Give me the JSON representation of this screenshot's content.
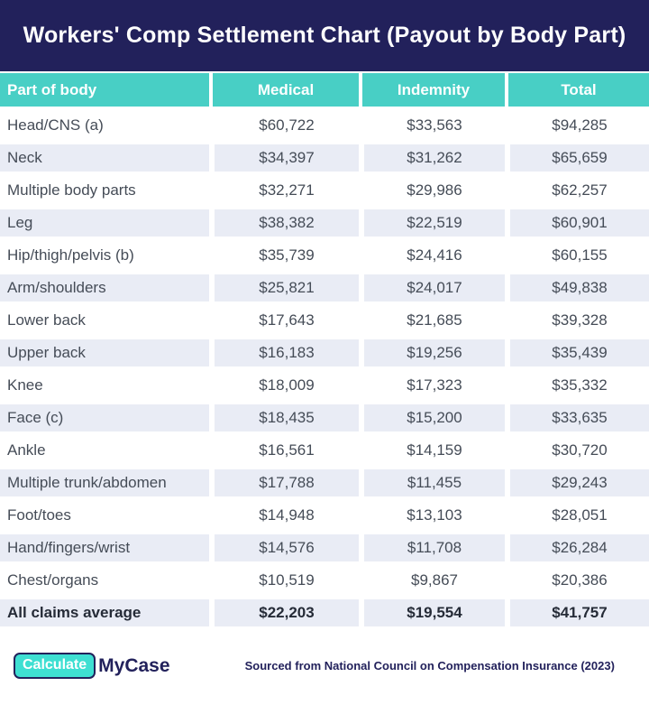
{
  "title": "Workers' Comp Settlement Chart (Payout by Body Part)",
  "chart_data": {
    "type": "table",
    "title": "Workers' Comp Settlement Chart (Payout by Body Part)",
    "columns": [
      "Part of body",
      "Medical",
      "Indemnity",
      "Total"
    ],
    "currency_prefix": "$",
    "rows": [
      [
        "Head/CNS (a)",
        60722,
        33563,
        94285
      ],
      [
        "Neck",
        34397,
        31262,
        65659
      ],
      [
        "Multiple body parts",
        32271,
        29986,
        62257
      ],
      [
        "Leg",
        38382,
        22519,
        60901
      ],
      [
        "Hip/thigh/pelvis (b)",
        35739,
        24416,
        60155
      ],
      [
        "Arm/shoulders",
        25821,
        24017,
        49838
      ],
      [
        "Lower back",
        17643,
        21685,
        39328
      ],
      [
        "Upper back",
        16183,
        19256,
        35439
      ],
      [
        "Knee",
        18009,
        17323,
        35332
      ],
      [
        "Face (c)",
        18435,
        15200,
        33635
      ],
      [
        "Ankle",
        16561,
        14159,
        30720
      ],
      [
        "Multiple trunk/abdomen",
        17788,
        11455,
        29243
      ],
      [
        "Foot/toes",
        14948,
        13103,
        28051
      ],
      [
        "Hand/fingers/wrist",
        14576,
        11708,
        26284
      ],
      [
        "Chest/organs",
        10519,
        9867,
        20386
      ]
    ],
    "summary_row": [
      "All claims average",
      22203,
      19554,
      41757
    ],
    "source": "Sourced from National Council on Compensation Insurance (2023)"
  },
  "footer": {
    "logo": {
      "badge": "Calculate",
      "wordmark": "MyCase"
    },
    "source": "Sourced from National Council on Compensation Insurance (2023)"
  },
  "colors": {
    "header_navy": "#22215b",
    "teal_accent": "#48cfc5",
    "logo_teal": "#3edfd2",
    "row_alt": "#e9ecf5",
    "cell_text": "#454c57",
    "summary_text": "#252b37"
  }
}
